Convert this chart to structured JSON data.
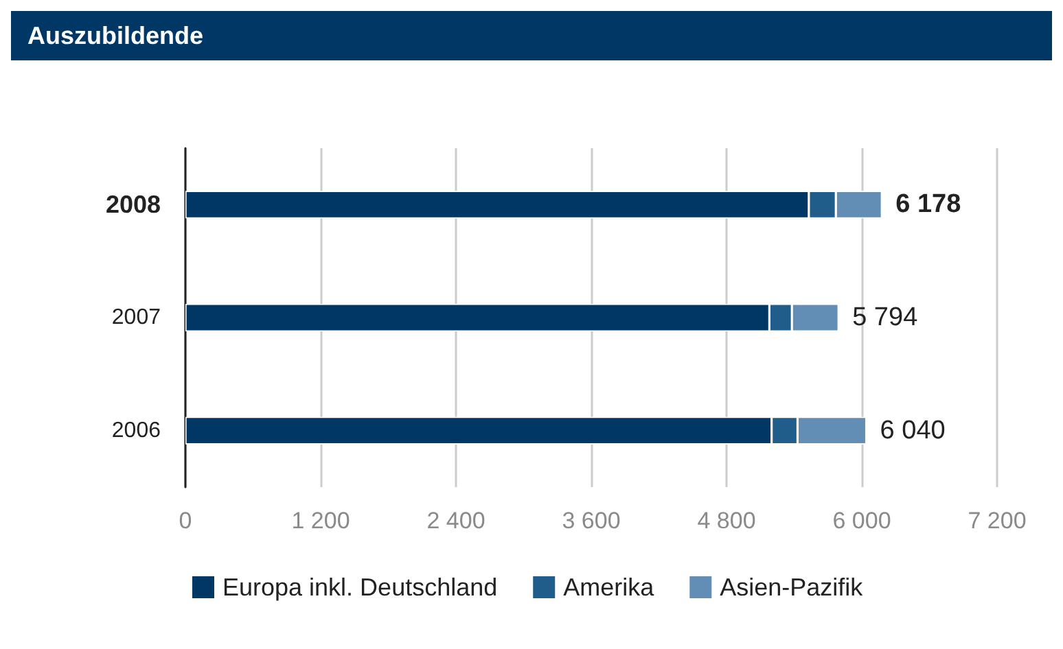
{
  "chart_data": {
    "type": "bar",
    "orientation": "horizontal",
    "stacked": true,
    "title": "Auszubildende",
    "categories": [
      "2008",
      "2007",
      "2006"
    ],
    "series": [
      {
        "name": "Europa inkl. Deutschland",
        "color": "#003764",
        "values": [
          5530,
          5180,
          5200
        ]
      },
      {
        "name": "Amerika",
        "color": "#215d8b",
        "values": [
          240,
          200,
          230
        ]
      },
      {
        "name": "Asien-Pazifik",
        "color": "#628db5",
        "values": [
          408,
          414,
          610
        ]
      }
    ],
    "totals": [
      "6 178",
      "5 794",
      "6 040"
    ],
    "xlim": [
      0,
      7200
    ],
    "xticks": [
      0,
      {
        "value": 1200,
        "label": "1 200"
      },
      {
        "value": 2400,
        "label": "2 400"
      },
      {
        "value": 3600,
        "label": "3 600"
      },
      {
        "value": 4800,
        "label": "4 800"
      },
      {
        "value": 6000,
        "label": "6 000"
      },
      {
        "value": 7200,
        "label": "7 200"
      }
    ],
    "grid": "x",
    "legend": "bottom"
  }
}
